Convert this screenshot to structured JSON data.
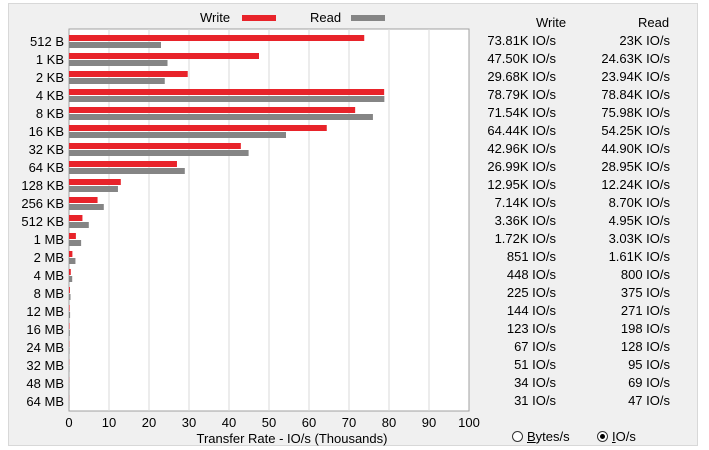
{
  "legend": {
    "write_label": "Write",
    "read_label": "Read"
  },
  "colors": {
    "write": "#e8232a",
    "read": "#858585",
    "grid": "#d9d9d9"
  },
  "table": {
    "write_header": "Write",
    "read_header": "Read",
    "rows": [
      {
        "write": "73.81K IO/s",
        "read": "23K IO/s"
      },
      {
        "write": "47.50K IO/s",
        "read": "24.63K IO/s"
      },
      {
        "write": "29.68K IO/s",
        "read": "23.94K IO/s"
      },
      {
        "write": "78.79K IO/s",
        "read": "78.84K IO/s"
      },
      {
        "write": "71.54K IO/s",
        "read": "75.98K IO/s"
      },
      {
        "write": "64.44K IO/s",
        "read": "54.25K IO/s"
      },
      {
        "write": "42.96K IO/s",
        "read": "44.90K IO/s"
      },
      {
        "write": "26.99K IO/s",
        "read": "28.95K IO/s"
      },
      {
        "write": "12.95K IO/s",
        "read": "12.24K IO/s"
      },
      {
        "write": "7.14K IO/s",
        "read": "8.70K IO/s"
      },
      {
        "write": "3.36K IO/s",
        "read": "4.95K IO/s"
      },
      {
        "write": "1.72K IO/s",
        "read": "3.03K IO/s"
      },
      {
        "write": "851 IO/s",
        "read": "1.61K IO/s"
      },
      {
        "write": "448 IO/s",
        "read": "800 IO/s"
      },
      {
        "write": "225 IO/s",
        "read": "375 IO/s"
      },
      {
        "write": "144 IO/s",
        "read": "271 IO/s"
      },
      {
        "write": "123 IO/s",
        "read": "198 IO/s"
      },
      {
        "write": "67 IO/s",
        "read": "128 IO/s"
      },
      {
        "write": "51 IO/s",
        "read": "95 IO/s"
      },
      {
        "write": "34 IO/s",
        "read": "69 IO/s"
      },
      {
        "write": "31 IO/s",
        "read": "47 IO/s"
      }
    ]
  },
  "units": {
    "bytes_label": "Bytes/s",
    "ios_label": "IO/s",
    "selected": "IO/s"
  },
  "chart_data": {
    "type": "bar",
    "orientation": "horizontal",
    "xlabel": "Transfer Rate - IO/s (Thousands)",
    "xlim": [
      0,
      100
    ],
    "xticks": [
      0,
      10,
      20,
      30,
      40,
      50,
      60,
      70,
      80,
      90,
      100
    ],
    "grid": true,
    "legend_placement": "top",
    "categories": [
      "512 B",
      "1 KB",
      "2 KB",
      "4 KB",
      "8 KB",
      "16 KB",
      "32 KB",
      "64 KB",
      "128 KB",
      "256 KB",
      "512 KB",
      "1 MB",
      "2 MB",
      "4 MB",
      "8 MB",
      "12 MB",
      "16 MB",
      "24 MB",
      "32 MB",
      "48 MB",
      "64 MB"
    ],
    "series": [
      {
        "name": "Write",
        "values": [
          73.81,
          47.5,
          29.68,
          78.79,
          71.54,
          64.44,
          42.96,
          26.99,
          12.95,
          7.14,
          3.36,
          1.72,
          0.851,
          0.448,
          0.225,
          0.144,
          0.123,
          0.067,
          0.051,
          0.034,
          0.031
        ]
      },
      {
        "name": "Read",
        "values": [
          23.0,
          24.63,
          23.94,
          78.84,
          75.98,
          54.25,
          44.9,
          28.95,
          12.24,
          8.7,
          4.95,
          3.03,
          1.61,
          0.8,
          0.375,
          0.271,
          0.198,
          0.128,
          0.095,
          0.069,
          0.047
        ]
      }
    ]
  }
}
